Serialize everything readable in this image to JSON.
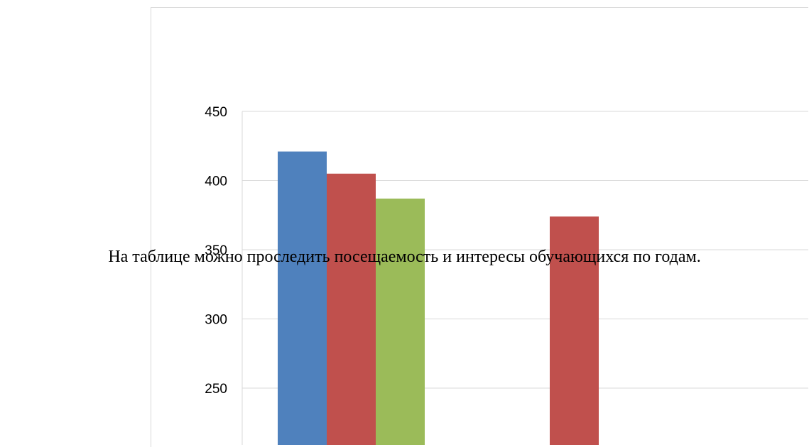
{
  "caption": "На таблице можно проследить  посещаемость  и интересы обучающихся по годам.",
  "colors": {
    "series_1": "#4f81bd",
    "series_2": "#c0504d",
    "series_3": "#9bbb59",
    "gridline": "#d9d9d9",
    "frame_border": "#d9d9d9"
  },
  "chart_data": {
    "type": "bar",
    "title": "",
    "xlabel": "",
    "ylabel": "",
    "ylim": [
      200,
      450
    ],
    "yticks": [
      "250",
      "300",
      "350",
      "400",
      "450"
    ],
    "grid": true,
    "legend": "not visible",
    "categories": [
      "",
      ""
    ],
    "series": [
      {
        "color": "#4f81bd",
        "values": [
          421,
          null
        ]
      },
      {
        "color": "#c0504d",
        "values": [
          405,
          374
        ]
      },
      {
        "color": "#9bbb59",
        "values": [
          387,
          null
        ]
      }
    ]
  }
}
